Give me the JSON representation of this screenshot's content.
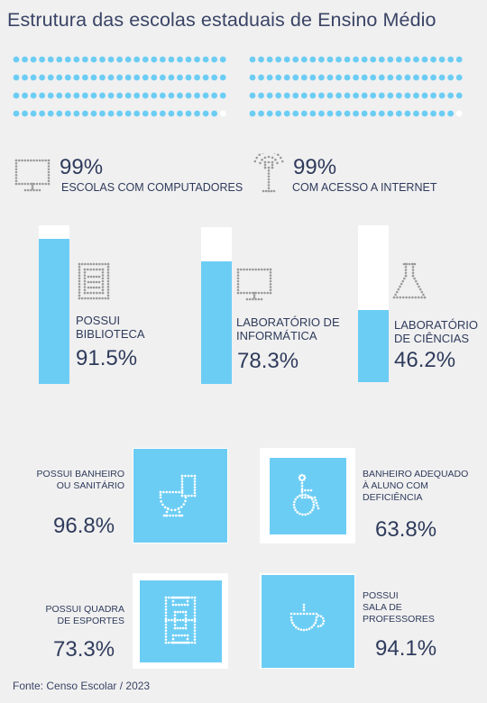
{
  "title": "Estrutura das escolas estaduais de Ensino Médio",
  "colors": {
    "accent": "#6ccdf4",
    "text": "#2f3b5c",
    "background": "#f0f0f0",
    "empty": "#ffffff",
    "icon": "#9a9a9a"
  },
  "top_stats": [
    {
      "value": "99%",
      "label": "ESCOLAS COM COMPUTADORES",
      "icon": "computer-icon",
      "filled_fraction": 0.99
    },
    {
      "value": "99%",
      "label": "COM ACESSO A INTERNET",
      "icon": "antenna-icon",
      "filled_fraction": 0.99
    }
  ],
  "infra": [
    {
      "label_lines": [
        "POSSUI",
        "BIBLIOTECA"
      ],
      "value": "91.5%",
      "fill": 0.915,
      "icon": "library-icon"
    },
    {
      "label_lines": [
        "LABORATÓRIO DE",
        "INFORMÁTICA"
      ],
      "value": "78.3%",
      "fill": 0.783,
      "icon": "computer-icon"
    },
    {
      "label_lines": [
        "LABORATÓRIO",
        "DE CIÊNCIAS"
      ],
      "value": "46.2%",
      "fill": 0.462,
      "icon": "flask-icon"
    }
  ],
  "squares": [
    {
      "label_lines": [
        "POSSUI BANHEIRO",
        "OU SANITÁRIO"
      ],
      "value": "96.8%",
      "fill": 0.968,
      "icon": "toilet-icon"
    },
    {
      "label_lines": [
        "BANHEIRO ADEQUADO",
        "À ALUNO COM",
        "DEFICIÊNCIA"
      ],
      "value": "63.8%",
      "fill": 0.638,
      "icon": "wheelchair-icon"
    },
    {
      "label_lines": [
        "POSSUI QUADRA",
        "DE ESPORTES"
      ],
      "value": "73.3%",
      "fill": 0.733,
      "icon": "court-icon"
    },
    {
      "label_lines": [
        "POSSUI",
        "SALA DE",
        "PROFESSORES"
      ],
      "value": "94.1%",
      "fill": 0.941,
      "icon": "mug-icon"
    }
  ],
  "source": "Fonte: Censo Escolar / 2023"
}
